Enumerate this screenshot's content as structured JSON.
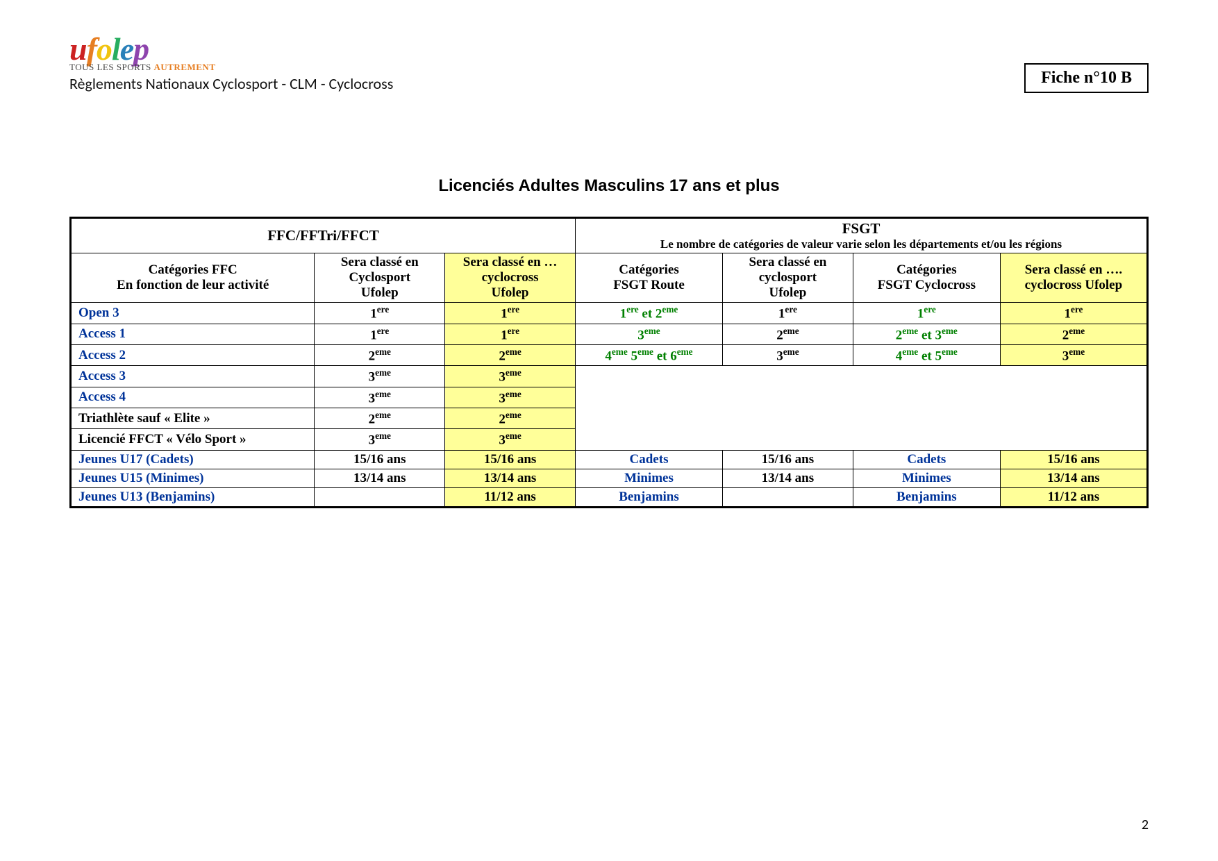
{
  "header": {
    "logo": {
      "text_u": "u",
      "text_f": "f",
      "text_o": "o",
      "text_l": "l",
      "text_e": "e",
      "text_p": "p",
      "tag_prefix": "TOUS LES SPORTS ",
      "tag_suffix": "AUTREMENT"
    },
    "subheader": "Règlements Nationaux Cyclosport - CLM - Cyclocross",
    "fiche": "Fiche n°10 B"
  },
  "title": "Licenciés Adultes Masculins 17 ans et plus",
  "table": {
    "group1_title": "FFC/FFTri/FFCT",
    "group2_title": "FSGT",
    "group2_sub": "Le nombre de catégories de valeur varie selon les départements et/ou les régions",
    "col1": "Catégories FFC",
    "col1b": "En fonction de leur activité",
    "col2": "Sera classé en Cyclosport Ufolep",
    "col3": "Sera classé en … cyclocross Ufolep",
    "col4": "Catégories FSGT Route",
    "col5": "Sera classé en cyclosport Ufolep",
    "col6": "Catégories FSGT Cyclocross",
    "col7": "Sera classé en …. cyclocross Ufolep",
    "rows": [
      {
        "cat": "Open 3",
        "cat_color": "blue",
        "c2": "1",
        "c2s": "ere",
        "c3": "1",
        "c3s": "ere",
        "c4": "1<sup>ere</sup> et 2<sup>eme</sup>",
        "c5": "1",
        "c5s": "ere",
        "c6": "1",
        "c6s": "ere",
        "c7": "1",
        "c7s": "ere"
      },
      {
        "cat": "Access 1",
        "cat_color": "blue",
        "c2": "1",
        "c2s": "ere",
        "c3": "1",
        "c3s": "ere",
        "c4": "3<sup>eme</sup>",
        "c5": "2",
        "c5s": "eme",
        "c6": "2<sup>eme</sup> et  3<sup>eme</sup>",
        "c7": "2",
        "c7s": "eme"
      },
      {
        "cat": "Access 2",
        "cat_color": "blue",
        "c2": "2",
        "c2s": "eme",
        "c3": "2",
        "c3s": "eme",
        "c4": "4<sup>eme</sup> 5<sup>eme</sup> et 6<sup>eme</sup>",
        "c5": "3",
        "c5s": "eme",
        "c6": "4<sup>eme</sup> et 5<sup>eme</sup>",
        "c7": "3",
        "c7s": "eme"
      },
      {
        "cat": "Access 3",
        "cat_color": "blue",
        "c2": "3",
        "c2s": "eme",
        "c3": "3",
        "c3s": "eme",
        "blank": true
      },
      {
        "cat": "Access 4",
        "cat_color": "blue",
        "c2": "3",
        "c2s": "eme",
        "c3": "3",
        "c3s": "eme",
        "blank": true
      },
      {
        "cat": "Triathlète sauf « Elite »",
        "cat_color": "black",
        "c2": "2",
        "c2s": "eme",
        "c3": "2",
        "c3s": "eme",
        "blank": true
      },
      {
        "cat": "Licencié FFCT « Vélo Sport »",
        "cat_color": "black",
        "c2": "3",
        "c2s": "eme",
        "c3": "3",
        "c3s": "eme",
        "blank": true
      }
    ],
    "yrows": [
      {
        "cat": "Jeunes U17 (Cadets)",
        "c2": "15/16 ans",
        "c3": "15/16 ans",
        "c4": "Cadets",
        "c5": "15/16 ans",
        "c6": "Cadets",
        "c7": "15/16 ans"
      },
      {
        "cat": "Jeunes U15 (Minimes)",
        "c2": "13/14 ans",
        "c3": "13/14 ans",
        "c4": "Minimes",
        "c5": "13/14 ans",
        "c6": "Minimes",
        "c7": "13/14 ans"
      },
      {
        "cat": "Jeunes U13 (Benjamins)",
        "c2": "",
        "c3": "11/12 ans",
        "c4": "Benjamins",
        "c5": "",
        "c6": "Benjamins",
        "c7": "11/12 ans"
      }
    ]
  },
  "pagenum": "2",
  "colors": {
    "yellow": "#ffff99",
    "blue": "#003399",
    "green": "#008000"
  },
  "col_widths": [
    "280",
    "150",
    "150",
    "170",
    "150",
    "170",
    "170"
  ]
}
